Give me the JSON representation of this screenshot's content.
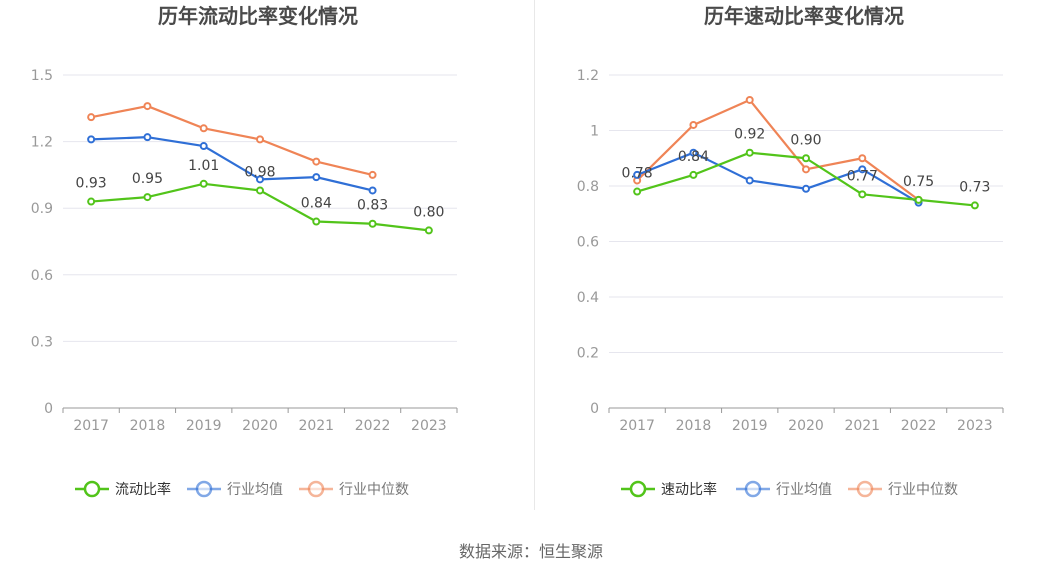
{
  "source": "数据来源：恒生聚源",
  "colors": {
    "green": "#52c41a",
    "blue": "#2f6fd6",
    "orange": "#ef8456",
    "grid": "#e6e6ee",
    "axis": "#999999"
  },
  "chart_data": [
    {
      "type": "line",
      "title": "历年流动比率变化情况",
      "categories": [
        "2017",
        "2018",
        "2019",
        "2020",
        "2021",
        "2022",
        "2023"
      ],
      "ylim": [
        0,
        1.5
      ],
      "yticks": [
        "0",
        "0.3",
        "0.6",
        "0.9",
        "1.2",
        "1.5"
      ],
      "grid": true,
      "legend_position": "bottom",
      "series": [
        {
          "name": "流动比率",
          "color": "#52c41a",
          "values": [
            0.93,
            0.95,
            1.01,
            0.98,
            0.84,
            0.83,
            0.8
          ],
          "labels": [
            "0.93",
            "0.95",
            "1.01",
            "0.98",
            "0.84",
            "0.83",
            "0.80"
          ]
        },
        {
          "name": "行业均值",
          "color": "#2f6fd6",
          "values": [
            1.21,
            1.22,
            1.18,
            1.03,
            1.04,
            0.98,
            null
          ]
        },
        {
          "name": "行业中位数",
          "color": "#ef8456",
          "values": [
            1.31,
            1.36,
            1.26,
            1.21,
            1.11,
            1.05,
            null
          ]
        }
      ]
    },
    {
      "type": "line",
      "title": "历年速动比率变化情况",
      "categories": [
        "2017",
        "2018",
        "2019",
        "2020",
        "2021",
        "2022",
        "2023"
      ],
      "ylim": [
        0,
        1.2
      ],
      "yticks": [
        "0",
        "0.2",
        "0.4",
        "0.6",
        "0.8",
        "1",
        "1.2"
      ],
      "grid": true,
      "legend_position": "bottom",
      "series": [
        {
          "name": "速动比率",
          "color": "#52c41a",
          "values": [
            0.78,
            0.84,
            0.92,
            0.9,
            0.77,
            0.75,
            0.73
          ],
          "labels": [
            "0.78",
            "0.84",
            "0.92",
            "0.90",
            "0.77",
            "0.75",
            "0.73"
          ]
        },
        {
          "name": "行业均值",
          "color": "#2f6fd6",
          "values": [
            0.84,
            0.92,
            0.82,
            0.79,
            0.86,
            0.74,
            null
          ]
        },
        {
          "name": "行业中位数",
          "color": "#ef8456",
          "values": [
            0.82,
            1.02,
            1.11,
            0.86,
            0.9,
            0.75,
            null
          ]
        }
      ]
    }
  ]
}
